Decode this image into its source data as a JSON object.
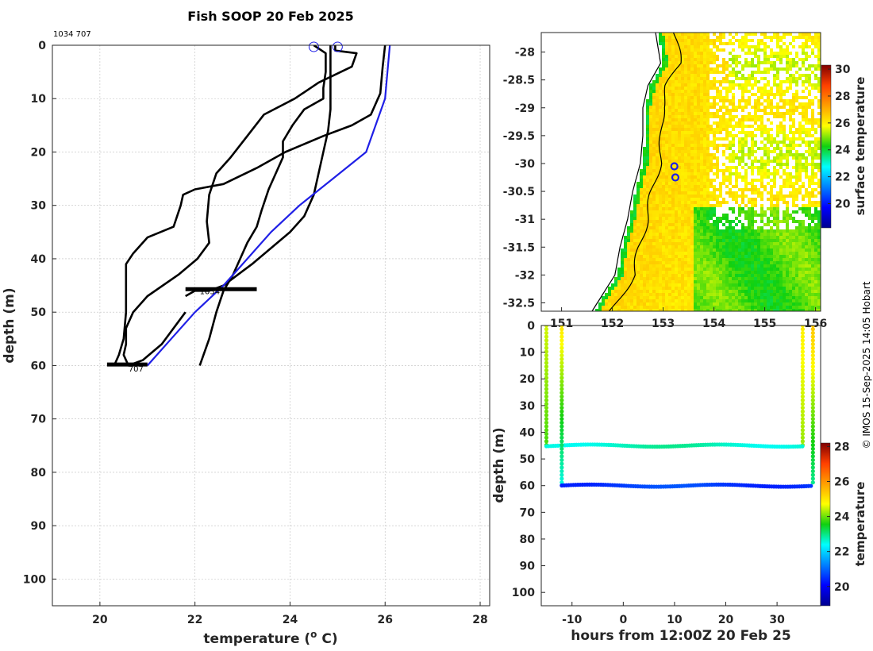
{
  "title": "Fish SOOP 20 Feb 2025",
  "credit": "© IMOS 15-Sep-2025 14:05 Hobart",
  "profile_ids": "1034 707",
  "colors": {
    "profile_line": "#000000",
    "climatology_line": "#1f1fe6",
    "marker": "#1f1fe6"
  },
  "chart_data": [
    {
      "type": "line",
      "name": "profile",
      "title": "Fish SOOP 20 Feb 2025",
      "xlabel": "temperature (° C)",
      "ylabel": "depth (m)",
      "xlim": [
        19,
        28.2
      ],
      "ylim": [
        105,
        0
      ],
      "xticks": [
        "20",
        "22",
        "24",
        "26",
        "28"
      ],
      "yticks": [
        "0",
        "10",
        "20",
        "30",
        "40",
        "50",
        "60",
        "70",
        "80",
        "90",
        "100"
      ],
      "grid": true,
      "annotations": [
        {
          "text": "1034",
          "x": 22.1,
          "y": 46
        },
        {
          "text": "707",
          "x": 20.6,
          "y": 60.5
        }
      ],
      "markers": [
        {
          "x": 24.5,
          "y": 0.3
        },
        {
          "x": 25.0,
          "y": 0.3
        }
      ],
      "series": [
        {
          "x": [
            24.5,
            24.75,
            24.75,
            24.7,
            24.7,
            24.3,
            24.05,
            23.85,
            23.85,
            23.7,
            23.55,
            23.4,
            23.3,
            23.1,
            22.95,
            22.8,
            22.6,
            22.45,
            22.3,
            22.1
          ],
          "y": [
            0,
            1.5,
            5,
            8,
            10,
            12,
            15,
            18,
            21,
            24,
            27,
            31,
            34,
            37,
            40,
            43,
            46,
            50,
            55,
            60
          ]
        },
        {
          "x": [
            24.95,
            24.95,
            25.4,
            25.3,
            24.6,
            24.1,
            23.45,
            23.1,
            22.75,
            22.45,
            22.3,
            22.25,
            22.3,
            22.05,
            21.65,
            21.0,
            20.7,
            20.55,
            20.55,
            20.5,
            20.55,
            20.6,
            20.9,
            21.3,
            21.8
          ],
          "y": [
            0,
            1,
            1.5,
            4,
            7,
            10,
            13,
            17,
            21,
            24,
            28,
            33,
            37,
            40,
            43,
            47,
            50,
            53,
            56,
            58,
            59,
            60,
            59,
            56,
            50
          ]
        },
        {
          "x": [
            26.0,
            25.95,
            25.9,
            25.7,
            25.3,
            24.7,
            23.9,
            23.3,
            22.6,
            22.0,
            21.75,
            21.7,
            21.55,
            21.0,
            20.7,
            20.55,
            20.55,
            20.55,
            20.5,
            20.4,
            20.3
          ],
          "y": [
            0,
            4,
            9,
            13,
            15,
            17,
            20,
            23,
            26,
            27,
            28,
            30,
            34,
            36,
            39,
            41,
            45,
            50,
            55,
            58,
            60
          ]
        },
        {
          "x": [
            24.85,
            24.85,
            24.85,
            24.85,
            24.8,
            24.7,
            24.6,
            24.5,
            24.3,
            24.0,
            23.6,
            23.2,
            22.9,
            22.6,
            22.3,
            22.0,
            21.8
          ],
          "y": [
            0,
            3,
            8,
            12,
            16,
            20,
            24,
            28,
            32,
            35,
            38,
            41,
            43,
            45,
            46,
            46,
            47
          ]
        },
        {
          "x": [
            26.1,
            26.0,
            25.6,
            24.9,
            24.2,
            23.6,
            23.1,
            22.6,
            22.0,
            21.5,
            21.0
          ],
          "y": [
            0,
            10,
            20,
            25,
            30,
            35,
            40,
            45,
            50,
            55,
            60
          ]
        }
      ]
    },
    {
      "type": "heatmap",
      "name": "sst_map",
      "colorbar_label": "surface temperature",
      "colorbar_ticks": [
        "20",
        "22",
        "24",
        "26",
        "28",
        "30"
      ],
      "colorbar_range": [
        18.2,
        30.3
      ],
      "xlim": [
        150.6,
        156.1
      ],
      "ylim": [
        -32.65,
        -27.65
      ],
      "xticks": [
        "151",
        "152",
        "153",
        "154",
        "155",
        "156"
      ],
      "yticks": [
        "-28",
        "-28.5",
        "-29",
        "-29.5",
        "-30",
        "-30.5",
        "-31",
        "-31.5",
        "-32",
        "-32.5"
      ],
      "stations": [
        {
          "lon": 153.22,
          "lat": -30.05
        },
        {
          "lon": 153.24,
          "lat": -30.25
        }
      ]
    },
    {
      "type": "scatter",
      "name": "depth_time",
      "xlabel": "hours from 12:00Z 20 Feb 25",
      "ylabel": "depth (m)",
      "colorbar_label": "temperature",
      "colorbar_ticks": [
        "20",
        "22",
        "24",
        "26",
        "28"
      ],
      "colorbar_range": [
        18.9,
        28.2
      ],
      "xlim": [
        -16,
        38.5
      ],
      "ylim": [
        105,
        0
      ],
      "xticks": [
        "-10",
        "0",
        "10",
        "20",
        "30"
      ],
      "yticks": [
        "0",
        "10",
        "20",
        "30",
        "40",
        "50",
        "60",
        "70",
        "80",
        "90",
        "100"
      ],
      "tracks": [
        {
          "x": [
            -15,
            -15,
            35,
            35
          ],
          "y": [
            0,
            45,
            45,
            0
          ],
          "t_top": 24.5,
          "t_mid": 23.8,
          "t_bottom": 22.7
        },
        {
          "x": [
            -12,
            -12,
            37,
            37
          ],
          "y": [
            0,
            60,
            60,
            0
          ],
          "t_top": 25.0,
          "t_mid": 22.5,
          "t_bottom": 20.6
        }
      ]
    }
  ]
}
